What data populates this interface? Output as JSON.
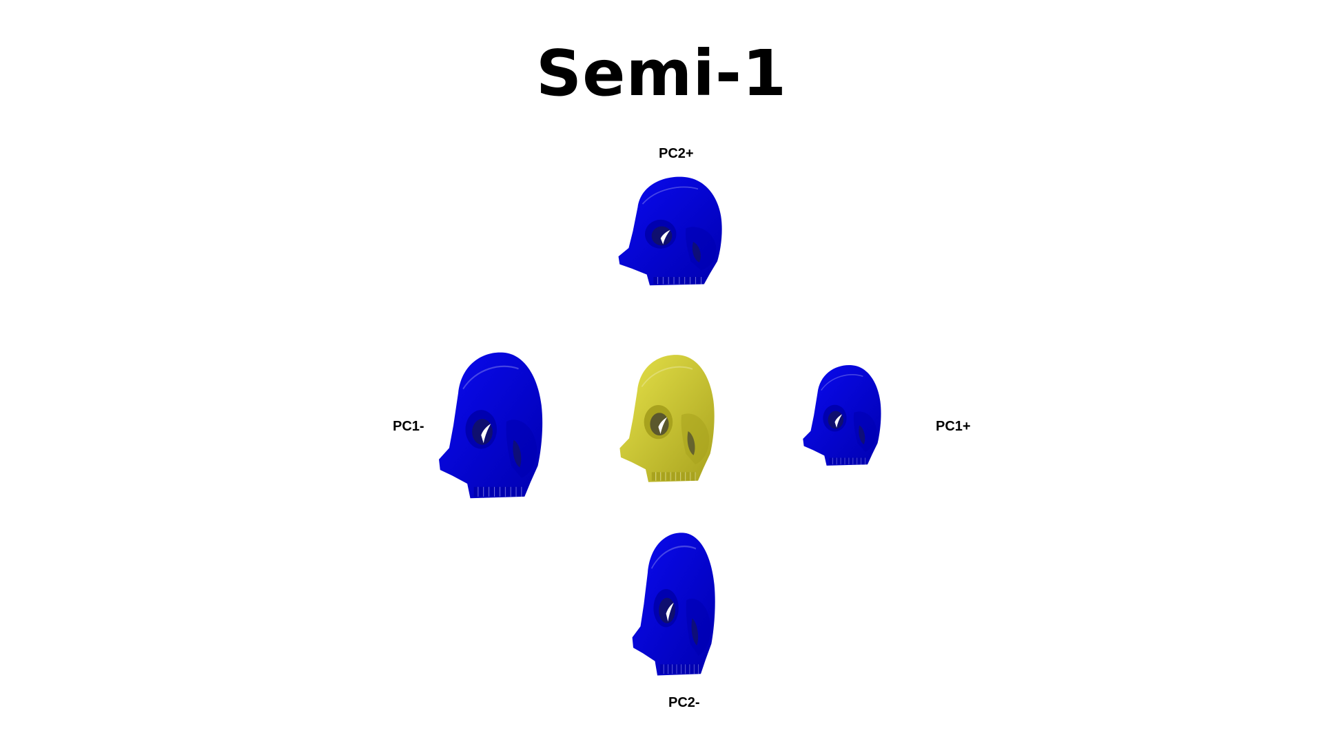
{
  "title": "Semi-1",
  "labels": {
    "pc2_plus": "PC2+",
    "pc2_minus": "PC2-",
    "pc1_minus": "PC1-",
    "pc1_plus": "PC1+"
  },
  "colors": {
    "variant": "#0a0af0",
    "variant_shade": "#0000b0",
    "mean": "#e6e24a",
    "mean_shade": "#a8a21e"
  },
  "skulls": [
    {
      "id": "pc2-plus",
      "role": "variant"
    },
    {
      "id": "pc1-minus",
      "role": "variant"
    },
    {
      "id": "mean",
      "role": "mean"
    },
    {
      "id": "pc1-plus",
      "role": "variant"
    },
    {
      "id": "pc2-minus",
      "role": "variant"
    }
  ]
}
